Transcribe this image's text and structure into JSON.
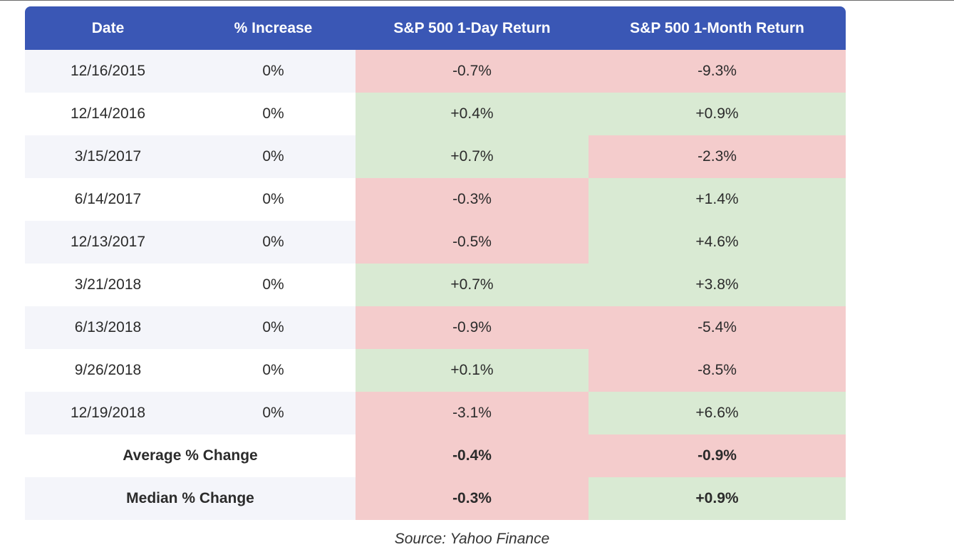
{
  "table": {
    "headers": [
      "Date",
      "% Increase",
      "S&P 500 1-Day Return",
      "S&P 500 1-Month Return"
    ],
    "rows": [
      {
        "date": "12/16/2015",
        "increase": "0%",
        "one_day": "-0.7%",
        "one_month": "-9.3%"
      },
      {
        "date": "12/14/2016",
        "increase": "0%",
        "one_day": "+0.4%",
        "one_month": "+0.9%"
      },
      {
        "date": "3/15/2017",
        "increase": "0%",
        "one_day": "+0.7%",
        "one_month": "-2.3%"
      },
      {
        "date": "6/14/2017",
        "increase": "0%",
        "one_day": "-0.3%",
        "one_month": "+1.4%"
      },
      {
        "date": "12/13/2017",
        "increase": "0%",
        "one_day": "-0.5%",
        "one_month": "+4.6%"
      },
      {
        "date": "3/21/2018",
        "increase": "0%",
        "one_day": "+0.7%",
        "one_month": "+3.8%"
      },
      {
        "date": "6/13/2018",
        "increase": "0%",
        "one_day": "-0.9%",
        "one_month": "-5.4%"
      },
      {
        "date": "9/26/2018",
        "increase": "0%",
        "one_day": "+0.1%",
        "one_month": "-8.5%"
      },
      {
        "date": "12/19/2018",
        "increase": "0%",
        "one_day": "-3.1%",
        "one_month": "+6.6%"
      }
    ],
    "summary": [
      {
        "label": "Average % Change",
        "one_day": "-0.4%",
        "one_month": "-0.9%"
      },
      {
        "label": "Median % Change",
        "one_day": "-0.3%",
        "one_month": "+0.9%"
      }
    ]
  },
  "source": "Source: Yahoo Finance",
  "colors": {
    "header": "#3a57b5",
    "negative_cell": "#f4cccc",
    "positive_cell": "#d9ead3",
    "stripe": "#f4f5fa"
  }
}
